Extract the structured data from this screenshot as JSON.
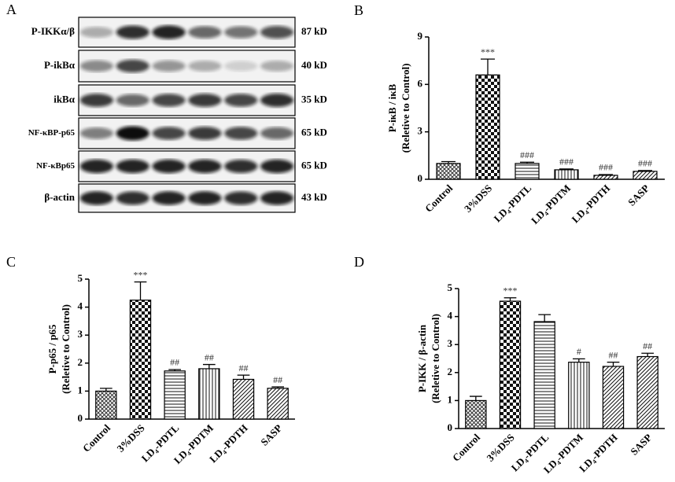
{
  "blot": {
    "label": "A",
    "rows": [
      {
        "name": "P-IKKα/β",
        "size": "87 kD"
      },
      {
        "name": "P-ikBα",
        "size": "40 kD"
      },
      {
        "name": "ikBα",
        "size": "35 kD"
      },
      {
        "name": "NF-κBP-p65",
        "size": "65 kD"
      },
      {
        "name": "NF-κBp65",
        "size": "65 kD"
      },
      {
        "name": "β-actin",
        "size": "43 kD"
      }
    ]
  },
  "chart_data": [
    {
      "type": "bar",
      "label": "B",
      "ylabel": [
        "P-iκB / iκB",
        "(Reletive to Control)"
      ],
      "categories": [
        "Control",
        "3%DSS",
        "LD₄-PDTL",
        "LD₄-PDTM",
        "LD₄-PDTH",
        "SASP"
      ],
      "values": [
        1.0,
        6.6,
        1.0,
        0.6,
        0.25,
        0.5
      ],
      "errors": [
        0.12,
        1.0,
        0.08,
        0.05,
        0.05,
        0.05
      ],
      "annotations": [
        null,
        "***",
        "###",
        "###",
        "###",
        "###"
      ],
      "patterns": [
        "crosshatch",
        "checker",
        "horizontal",
        "vertical",
        "diagonal",
        "diagonal"
      ],
      "ylim": [
        0,
        9
      ],
      "yticks": [
        0,
        3,
        6,
        9
      ]
    },
    {
      "type": "bar",
      "label": "C",
      "ylabel": [
        "P-p65 / p65",
        "(Reletive to Control)"
      ],
      "categories": [
        "Control",
        "3%DSS",
        "LD₄-PDTL",
        "LD₄-PDTM",
        "LD₄-PDTH",
        "SASP"
      ],
      "values": [
        1.0,
        4.25,
        1.72,
        1.8,
        1.42,
        1.1
      ],
      "errors": [
        0.1,
        0.65,
        0.05,
        0.15,
        0.15,
        0.05
      ],
      "annotations": [
        null,
        "***",
        "##",
        "##",
        "##",
        "##"
      ],
      "patterns": [
        "crosshatch",
        "checker",
        "horizontal",
        "vertical",
        "diagonal",
        "diagonal"
      ],
      "ylim": [
        0,
        5
      ],
      "yticks": [
        0,
        1,
        2,
        3,
        4,
        5
      ]
    },
    {
      "type": "bar",
      "label": "D",
      "ylabel": [
        "P-IKK / β-actin",
        "(Reletive to Control)"
      ],
      "categories": [
        "Control",
        "3%DSS",
        "LD₄-PDTL",
        "LD₄-PDTM",
        "LD₄-PDTH",
        "SASP"
      ],
      "values": [
        1.0,
        4.55,
        3.82,
        2.37,
        2.22,
        2.57
      ],
      "errors": [
        0.15,
        0.12,
        0.25,
        0.12,
        0.15,
        0.12
      ],
      "annotations": [
        null,
        "***",
        null,
        "#",
        "##",
        "##"
      ],
      "patterns": [
        "crosshatch",
        "checker",
        "horizontal",
        "vertical",
        "diagonal",
        "diagonal"
      ],
      "ylim": [
        0,
        5
      ],
      "yticks": [
        0,
        1,
        2,
        3,
        4,
        5
      ]
    }
  ]
}
